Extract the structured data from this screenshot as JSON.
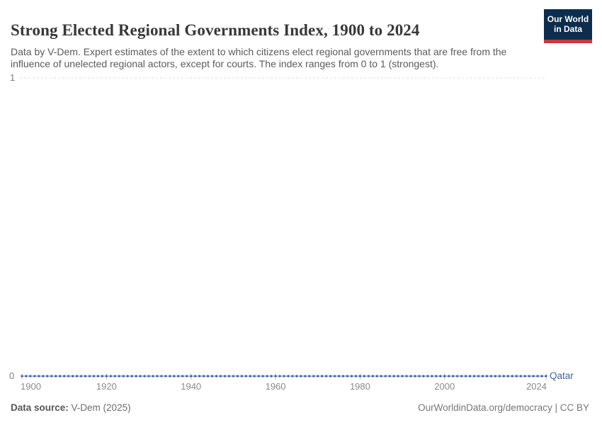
{
  "header": {
    "title": "Strong Elected Regional Governments Index, 1900 to 2024",
    "subtitle": "Data by V-Dem. Expert estimates of the extent to which citizens elect regional governments that are free from the influence of unelected regional actors, except for courts. The index ranges from 0 to 1 (strongest)."
  },
  "logo": {
    "line1": "Our World",
    "line2": "in Data"
  },
  "chart_data": {
    "type": "line",
    "title": "Strong Elected Regional Governments Index, 1900 to 2024",
    "xlabel": "",
    "ylabel": "",
    "xlim": [
      1900,
      2024
    ],
    "ylim": [
      0,
      1
    ],
    "x_ticks": [
      1900,
      1920,
      1940,
      1960,
      1980,
      2000,
      2024
    ],
    "y_ticks": [
      0,
      1
    ],
    "y_tick_labels": [
      "0",
      "1"
    ],
    "grid": "horizontal dashed gridline at y=1 only",
    "legend_position": "entity label at right end of line",
    "series": [
      {
        "name": "Qatar",
        "year_start": 1900,
        "year_end": 2024,
        "year_step": 1,
        "value_constant": 0,
        "description": "index value is 0 for every year from 1900 through 2024 (125 yearly points, all 0)"
      }
    ],
    "marker": "small dot at every yearly data point"
  },
  "colors": {
    "series_line": "#3360a9",
    "series_marker": "#3a61a6",
    "entity_label": "#3d64a8",
    "gridline": "#dcdcdc",
    "axis_tick": "#c2c2c2",
    "axis_text": "#8a8a8a",
    "logo_bg": "#0c2d4d",
    "logo_bar": "#d1353b"
  },
  "footer": {
    "source_label": "Data source:",
    "source_value": "V-Dem (2025)",
    "credit": "OurWorldinData.org/democracy | CC BY"
  }
}
